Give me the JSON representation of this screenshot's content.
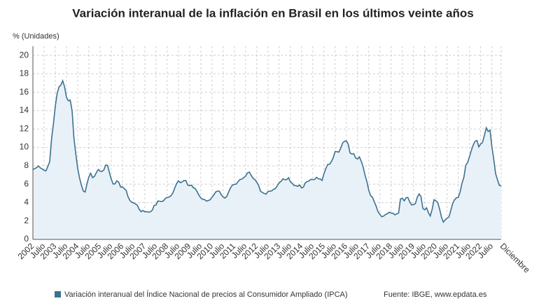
{
  "chart_data": {
    "type": "line",
    "title": "Variación interanual de la inflación en Brasil en los últimos veinte años",
    "y_label": "% (Unidades)",
    "source": "Fuente: IBGE, www.epdata.es",
    "ylim": [
      0,
      21
    ],
    "yticks": [
      0,
      2,
      4,
      6,
      8,
      10,
      12,
      14,
      16,
      18,
      20
    ],
    "grid": true,
    "categories": [
      "2002",
      null,
      null,
      null,
      null,
      null,
      "Julio",
      null,
      null,
      null,
      null,
      null,
      "2003",
      null,
      null,
      null,
      null,
      null,
      "Julio",
      null,
      null,
      null,
      null,
      null,
      "2004",
      null,
      null,
      null,
      null,
      null,
      "Julio",
      null,
      null,
      null,
      null,
      null,
      "2005",
      null,
      null,
      null,
      null,
      null,
      "Julio",
      null,
      null,
      null,
      null,
      null,
      "2006",
      null,
      null,
      null,
      null,
      null,
      "Julio",
      null,
      null,
      null,
      null,
      null,
      "2007",
      null,
      null,
      null,
      null,
      null,
      "Julio",
      null,
      null,
      null,
      null,
      null,
      "2008",
      null,
      null,
      null,
      null,
      null,
      "Julio",
      null,
      null,
      null,
      null,
      null,
      "2009",
      null,
      null,
      null,
      null,
      null,
      "Julio",
      null,
      null,
      null,
      null,
      null,
      "2010",
      null,
      null,
      null,
      null,
      null,
      "Julio",
      null,
      null,
      null,
      null,
      null,
      "2011",
      null,
      null,
      null,
      null,
      null,
      "Julio",
      null,
      null,
      null,
      null,
      null,
      "2012",
      null,
      null,
      null,
      null,
      null,
      "Julio",
      null,
      null,
      null,
      null,
      null,
      "2013",
      null,
      null,
      null,
      null,
      null,
      "Julio",
      null,
      null,
      null,
      null,
      null,
      "2014",
      null,
      null,
      null,
      null,
      null,
      "Julio",
      null,
      null,
      null,
      null,
      null,
      "2015",
      null,
      null,
      null,
      null,
      null,
      "Julio",
      null,
      null,
      null,
      null,
      null,
      "2016",
      null,
      null,
      null,
      null,
      null,
      "Julio",
      null,
      null,
      null,
      null,
      null,
      "2017",
      null,
      null,
      null,
      null,
      null,
      "Julio",
      null,
      null,
      null,
      null,
      null,
      "2018",
      null,
      null,
      null,
      null,
      null,
      "Julio",
      null,
      null,
      null,
      null,
      null,
      "2019",
      null,
      null,
      null,
      null,
      null,
      "Julio",
      null,
      null,
      null,
      null,
      null,
      "2020",
      null,
      null,
      null,
      null,
      null,
      "Julio",
      null,
      null,
      null,
      null,
      null,
      "2021",
      null,
      null,
      null,
      null,
      null,
      "Julio",
      null,
      null,
      null,
      null,
      null,
      "2022",
      null,
      null,
      null,
      null,
      null,
      "Julio",
      null,
      null,
      null,
      null,
      "Diciembre"
    ],
    "series": [
      {
        "name": "Variación interanual del Índice Nacional de precios al Consumidor Ampliado (IPCA)",
        "color": "#3b7190",
        "fill": "#e9f1f8",
        "values": [
          7.6,
          7.7,
          7.8,
          7.98,
          7.77,
          7.66,
          7.51,
          7.46,
          7.93,
          8.45,
          10.93,
          12.53,
          14.47,
          15.85,
          16.57,
          16.77,
          17.24,
          16.57,
          15.43,
          15.07,
          15.14,
          13.98,
          11.02,
          9.3,
          7.71,
          6.69,
          5.89,
          5.26,
          5.15,
          6.06,
          6.81,
          7.18,
          6.71,
          6.86,
          7.24,
          7.6,
          7.41,
          7.39,
          7.54,
          8.07,
          8.05,
          7.27,
          6.57,
          6.02,
          6.04,
          6.36,
          6.22,
          5.69,
          5.7,
          5.51,
          5.32,
          4.63,
          4.23,
          4.03,
          3.97,
          3.84,
          3.7,
          3.26,
          3.02,
          3.14,
          2.99,
          3.02,
          2.96,
          3.0,
          3.18,
          3.69,
          3.74,
          4.18,
          4.15,
          4.12,
          4.19,
          4.46,
          4.56,
          4.61,
          4.73,
          5.04,
          5.58,
          6.06,
          6.37,
          6.17,
          6.25,
          6.41,
          6.39,
          5.9,
          5.84,
          5.9,
          5.61,
          5.53,
          5.2,
          4.8,
          4.5,
          4.36,
          4.34,
          4.17,
          4.22,
          4.31,
          4.59,
          4.83,
          5.17,
          5.26,
          5.22,
          4.84,
          4.6,
          4.49,
          4.7,
          5.2,
          5.63,
          5.91,
          5.99,
          6.01,
          6.3,
          6.51,
          6.55,
          6.71,
          6.87,
          7.23,
          7.31,
          6.97,
          6.64,
          6.5,
          6.22,
          5.85,
          5.24,
          5.1,
          4.99,
          4.92,
          5.2,
          5.24,
          5.28,
          5.45,
          5.53,
          5.84,
          6.15,
          6.31,
          6.59,
          6.49,
          6.5,
          6.7,
          6.27,
          6.09,
          5.86,
          5.84,
          5.77,
          5.91,
          5.59,
          5.68,
          6.15,
          6.28,
          6.37,
          6.52,
          6.5,
          6.51,
          6.75,
          6.59,
          6.56,
          6.41,
          7.14,
          7.7,
          8.13,
          8.17,
          8.47,
          8.89,
          9.56,
          9.53,
          9.49,
          9.93,
          10.48,
          10.67,
          10.71,
          10.36,
          9.39,
          9.28,
          9.32,
          8.84,
          8.74,
          8.97,
          8.48,
          7.87,
          6.99,
          6.29,
          5.35,
          4.76,
          4.57,
          4.08,
          3.6,
          3.0,
          2.71,
          2.46,
          2.54,
          2.7,
          2.8,
          2.95,
          2.86,
          2.84,
          2.68,
          2.76,
          2.86,
          4.39,
          4.48,
          4.19,
          4.53,
          4.56,
          4.05,
          3.75,
          3.78,
          3.89,
          4.58,
          4.94,
          4.66,
          3.37,
          3.22,
          3.43,
          2.89,
          2.54,
          3.27,
          4.31,
          4.19,
          4.01,
          3.3,
          2.4,
          1.88,
          2.13,
          2.31,
          2.44,
          3.14,
          3.92,
          4.31,
          4.52,
          4.56,
          5.2,
          6.1,
          6.76,
          8.06,
          8.35,
          8.99,
          9.68,
          10.25,
          10.67,
          10.74,
          10.06,
          10.38,
          10.54,
          11.3,
          12.13,
          11.73,
          11.89,
          10.07,
          8.73,
          7.17,
          6.47,
          5.9,
          5.79
        ]
      }
    ]
  }
}
